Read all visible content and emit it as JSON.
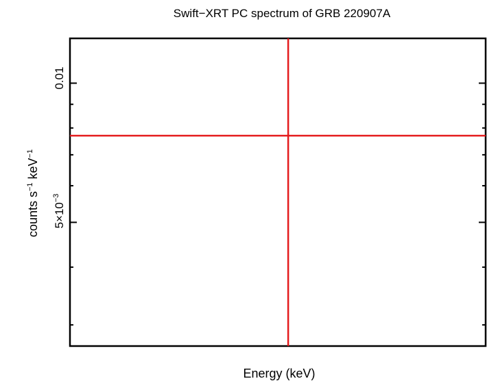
{
  "chart_data": {
    "type": "line",
    "title": "Swift−XRT PC spectrum of GRB 220907A",
    "xlabel": "Energy (keV)",
    "ylabel": {
      "base1": "counts s",
      "sup1": "−1",
      "base2": " keV",
      "sup2": "−1"
    },
    "yscale": "log",
    "ylim": [
      0.0027,
      0.0125
    ],
    "ytick_labels": [
      {
        "value": 0.01,
        "text": "0.01"
      },
      {
        "value": 0.005,
        "base": "5×10",
        "sup": "−3"
      }
    ],
    "yticks_minor": [
      0.003,
      0.004,
      0.006,
      0.007,
      0.008,
      0.009
    ],
    "xlim": [
      0,
      1
    ],
    "grid": false,
    "series": [
      {
        "type": "horizontal-line",
        "y": 0.0077,
        "color": "#e41a1c"
      },
      {
        "type": "vertical-line",
        "x": 0.525,
        "color": "#e41a1c"
      }
    ]
  }
}
